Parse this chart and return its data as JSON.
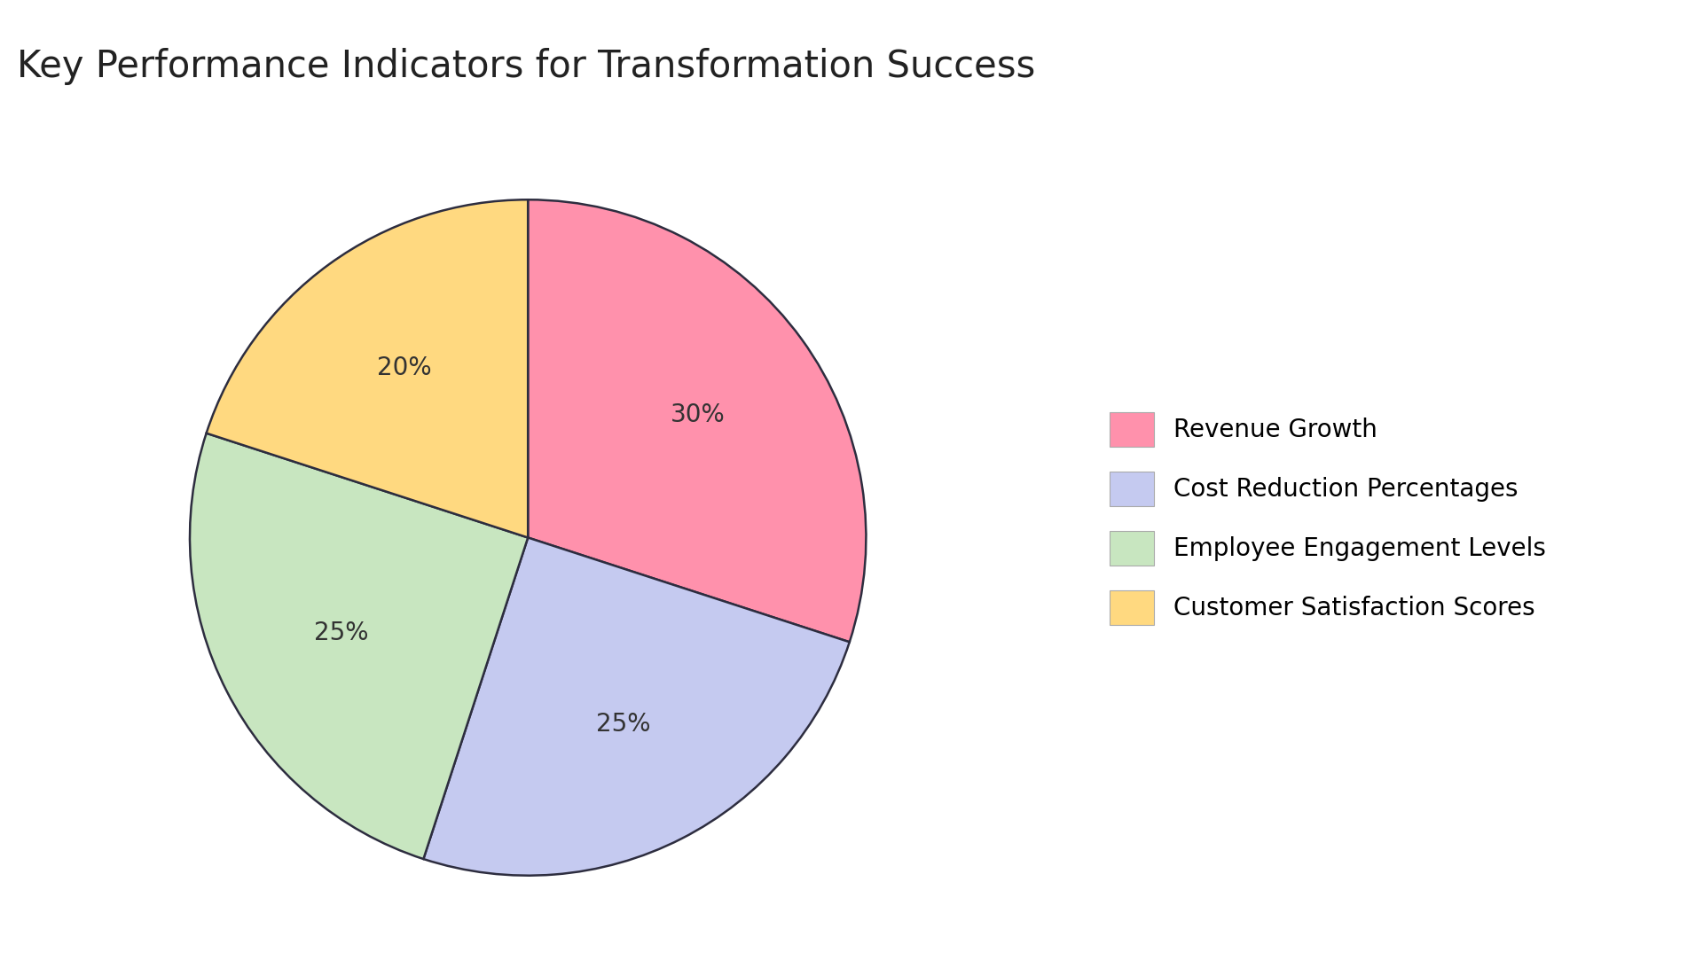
{
  "title": "Key Performance Indicators for Transformation Success",
  "slices": [
    {
      "label": "Revenue Growth",
      "value": 30,
      "color": "#FF91AC"
    },
    {
      "label": "Cost Reduction Percentages",
      "value": 25,
      "color": "#C5CAF0"
    },
    {
      "label": "Employee Engagement Levels",
      "value": 25,
      "color": "#C8E6C0"
    },
    {
      "label": "Customer Satisfaction Scores",
      "value": 20,
      "color": "#FFD980"
    }
  ],
  "start_angle": 90,
  "title_fontsize": 30,
  "label_fontsize": 20,
  "legend_fontsize": 20,
  "edge_color": "#2d2d3f",
  "edge_linewidth": 1.8,
  "background_color": "#FFFFFF"
}
